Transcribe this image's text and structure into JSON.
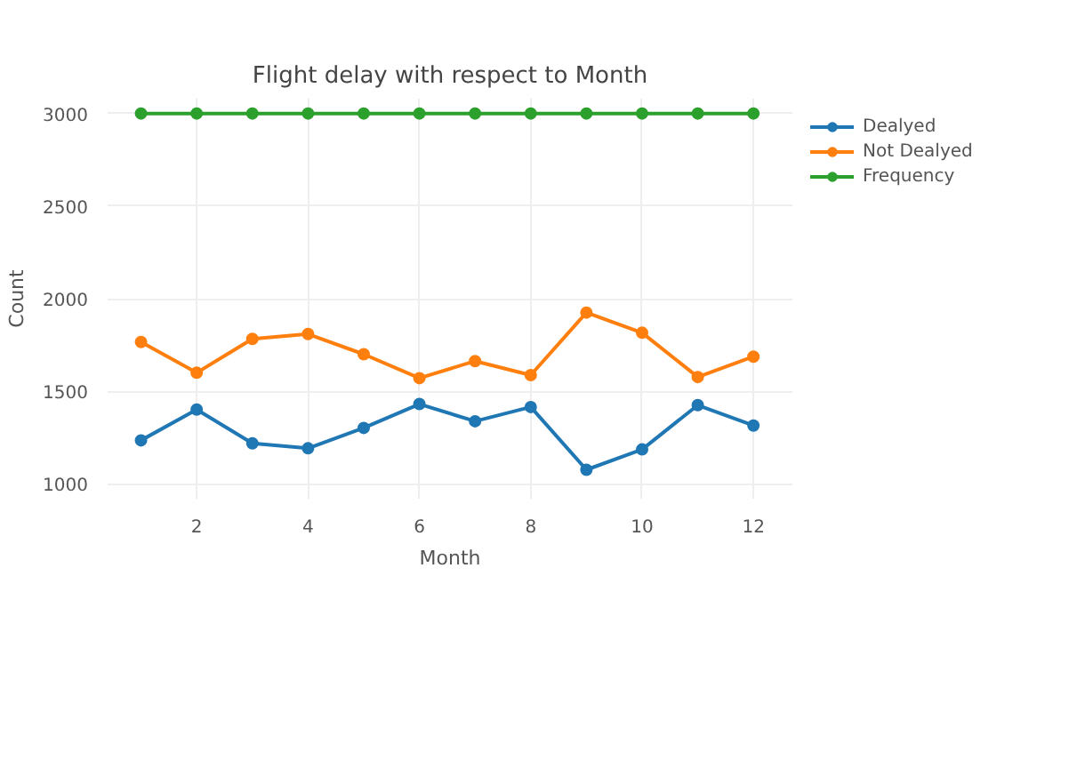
{
  "chart_data": {
    "type": "line",
    "title": "Flight delay with respect to Month",
    "xlabel": "Month",
    "ylabel": "Count",
    "x": [
      1,
      2,
      3,
      4,
      5,
      6,
      7,
      8,
      9,
      10,
      11,
      12
    ],
    "series": [
      {
        "name": "Dealyed",
        "color": "#1f77b4",
        "values": [
          1235,
          1401,
          1219,
          1192,
          1302,
          1431,
          1338,
          1415,
          1076,
          1186,
          1425,
          1315
        ]
      },
      {
        "name": "Not Dealyed",
        "color": "#ff7f0e",
        "values": [
          1766,
          1600,
          1783,
          1809,
          1700,
          1571,
          1663,
          1587,
          1925,
          1816,
          1577,
          1687
        ]
      },
      {
        "name": "Frequency",
        "color": "#2ca02c",
        "values": [
          3000,
          3000,
          3000,
          3000,
          3000,
          3000,
          3000,
          3000,
          3000,
          3000,
          3000,
          3000
        ]
      }
    ],
    "xlim": [
      0.4,
      12.7
    ],
    "ylim": [
      920,
      3080
    ],
    "xticks": [
      2,
      4,
      6,
      8,
      10,
      12
    ],
    "yticks": [
      1000,
      1500,
      2000,
      2500,
      3000
    ],
    "grid": true,
    "legend": "top right",
    "marker": "circle",
    "line_style": "solid"
  }
}
